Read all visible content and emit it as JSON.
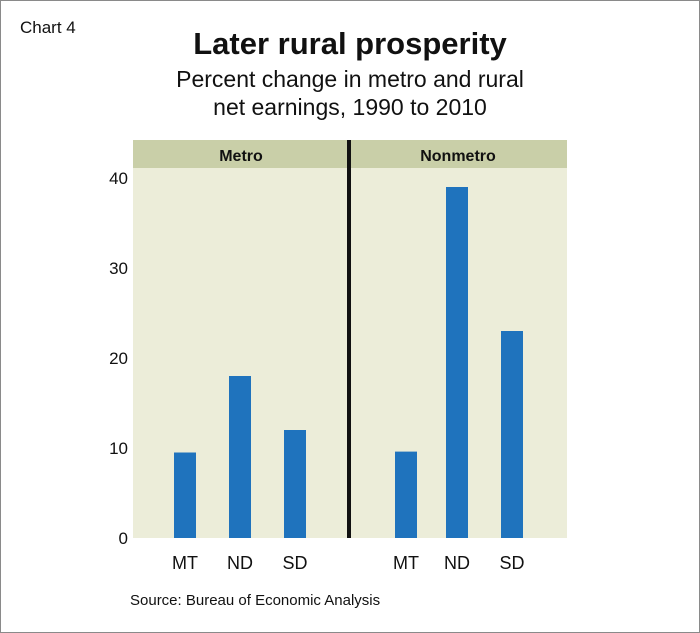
{
  "header": {
    "chart_label": "Chart 4",
    "title": "Later rural prosperity",
    "subtitle_line1": "Percent change in metro and rural",
    "subtitle_line2": "net earnings, 1990 to 2010"
  },
  "footer": {
    "source": "Source: Bureau of Economic Analysis"
  },
  "colors": {
    "bar": "#1f73bd",
    "plot_background": "#ecedd9",
    "panel_header": "#c9cfa8",
    "divider": "#111111"
  },
  "chart_data": {
    "type": "bar",
    "title": "Later rural prosperity",
    "subtitle": "Percent change in metro and rural net earnings, 1990 to 2010",
    "xlabel": "",
    "ylabel": "",
    "ylim": [
      0,
      44
    ],
    "yticks": [
      0,
      10,
      20,
      30,
      40
    ],
    "grid": false,
    "legend": "none",
    "panels": [
      {
        "name": "Metro",
        "categories": [
          "MT",
          "ND",
          "SD"
        ],
        "values": [
          9.5,
          18,
          12
        ]
      },
      {
        "name": "Nonmetro",
        "categories": [
          "MT",
          "ND",
          "SD"
        ],
        "values": [
          9.6,
          39,
          23
        ]
      }
    ]
  }
}
